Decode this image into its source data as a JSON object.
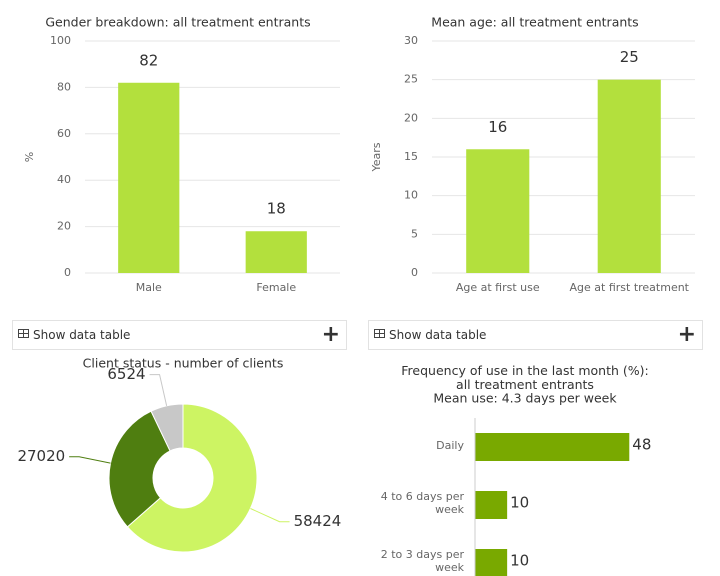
{
  "chart_data": [
    {
      "type": "bar",
      "title": "Gender breakdown: all treatment entrants",
      "y_label": "%",
      "categories": [
        "Male",
        "Female"
      ],
      "values": [
        82,
        18
      ],
      "color": "#b3e03d",
      "ylim": [
        0,
        100
      ],
      "yticks": [
        0,
        20,
        40,
        60,
        80,
        100
      ],
      "grid": true
    },
    {
      "type": "bar",
      "title": "Mean age: all treatment entrants",
      "y_label": "Years",
      "categories": [
        "Age at first use",
        "Age at first treatment"
      ],
      "values": [
        16,
        25
      ],
      "color": "#b3e03d",
      "ylim": [
        0,
        30
      ],
      "yticks": [
        0,
        5,
        10,
        15,
        20,
        25,
        30
      ],
      "grid": true
    },
    {
      "type": "donut",
      "title": "Client status - number of clients",
      "values": [
        58424,
        27020,
        6524
      ],
      "colors": [
        "#cdf463",
        "#4f7e10",
        "#c8c8c8"
      ]
    },
    {
      "type": "hbar",
      "title": "Frequency of use in the last month (%): all treatment entrants",
      "subtitle": "Mean use: 4.3 days per week",
      "categories": [
        "Daily",
        "4 to 6 days per week",
        "2 to 3 days per week"
      ],
      "values": [
        48,
        10,
        10
      ],
      "color": "#79a900",
      "xlim": [
        0,
        70
      ]
    }
  ],
  "controls": {
    "buttons": [
      {
        "label": "Show data table",
        "icon": "+"
      },
      {
        "label": "Show data table",
        "icon": "+"
      }
    ]
  }
}
